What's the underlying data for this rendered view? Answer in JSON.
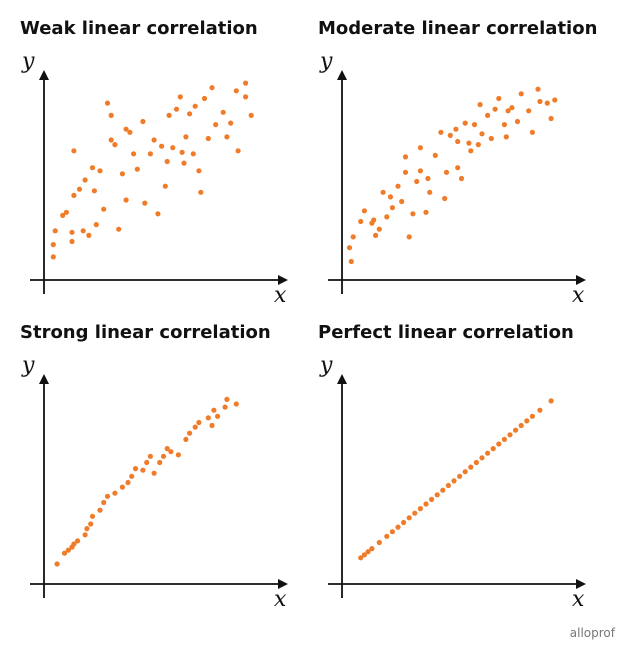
{
  "brand": "alloprof",
  "chart_data": [
    {
      "type": "scatter",
      "title": "Weak linear correlation",
      "xlabel": "x",
      "ylabel": "y",
      "point_color": "#f07c2a",
      "points": [
        [
          0.5,
          1.5
        ],
        [
          0.5,
          2.3
        ],
        [
          0.6,
          3.2
        ],
        [
          1.0,
          4.2
        ],
        [
          1.2,
          4.4
        ],
        [
          1.5,
          2.5
        ],
        [
          1.5,
          3.1
        ],
        [
          1.6,
          5.5
        ],
        [
          1.6,
          8.4
        ],
        [
          1.9,
          5.9
        ],
        [
          2.1,
          3.2
        ],
        [
          2.2,
          6.5
        ],
        [
          2.4,
          2.9
        ],
        [
          2.6,
          7.3
        ],
        [
          2.7,
          5.8
        ],
        [
          2.8,
          3.6
        ],
        [
          3.0,
          7.1
        ],
        [
          3.2,
          4.6
        ],
        [
          3.4,
          11.5
        ],
        [
          3.6,
          10.7
        ],
        [
          3.6,
          9.1
        ],
        [
          3.8,
          8.8
        ],
        [
          4.0,
          3.3
        ],
        [
          4.2,
          6.9
        ],
        [
          4.4,
          5.2
        ],
        [
          4.4,
          9.8
        ],
        [
          4.6,
          9.6
        ],
        [
          4.8,
          8.2
        ],
        [
          5.0,
          7.2
        ],
        [
          5.3,
          10.3
        ],
        [
          5.4,
          5.0
        ],
        [
          5.7,
          8.2
        ],
        [
          5.9,
          9.1
        ],
        [
          6.1,
          4.3
        ],
        [
          6.3,
          8.7
        ],
        [
          6.5,
          6.1
        ],
        [
          6.6,
          7.7
        ],
        [
          6.7,
          10.7
        ],
        [
          6.9,
          8.6
        ],
        [
          7.1,
          11.1
        ],
        [
          7.3,
          11.9
        ],
        [
          7.4,
          8.3
        ],
        [
          7.5,
          7.6
        ],
        [
          7.6,
          9.3
        ],
        [
          7.8,
          10.8
        ],
        [
          8.0,
          8.2
        ],
        [
          8.1,
          11.3
        ],
        [
          8.3,
          7.1
        ],
        [
          8.4,
          5.7
        ],
        [
          8.6,
          11.8
        ],
        [
          8.8,
          9.2
        ],
        [
          9.0,
          12.5
        ],
        [
          9.2,
          10.1
        ],
        [
          9.6,
          10.9
        ],
        [
          9.8,
          9.3
        ],
        [
          10.0,
          10.2
        ],
        [
          10.3,
          12.3
        ],
        [
          10.4,
          8.4
        ],
        [
          10.8,
          11.9
        ],
        [
          10.8,
          12.8
        ],
        [
          11.1,
          10.7
        ]
      ]
    },
    {
      "type": "scatter",
      "title": "Moderate linear correlation",
      "xlabel": "x",
      "ylabel": "y",
      "point_color": "#f07c2a",
      "points": [
        [
          0.4,
          2.1
        ],
        [
          0.5,
          1.2
        ],
        [
          0.6,
          2.8
        ],
        [
          1.0,
          3.8
        ],
        [
          1.2,
          4.5
        ],
        [
          1.6,
          3.7
        ],
        [
          1.7,
          3.9
        ],
        [
          1.8,
          2.9
        ],
        [
          2.0,
          3.3
        ],
        [
          2.2,
          5.7
        ],
        [
          2.4,
          4.1
        ],
        [
          2.6,
          5.4
        ],
        [
          2.7,
          4.7
        ],
        [
          3.0,
          6.1
        ],
        [
          3.2,
          5.1
        ],
        [
          3.4,
          7.0
        ],
        [
          3.4,
          8.0
        ],
        [
          3.6,
          2.8
        ],
        [
          3.8,
          4.3
        ],
        [
          4.0,
          6.4
        ],
        [
          4.2,
          8.6
        ],
        [
          4.2,
          7.1
        ],
        [
          4.5,
          4.4
        ],
        [
          4.6,
          6.6
        ],
        [
          4.7,
          5.7
        ],
        [
          5.0,
          8.1
        ],
        [
          5.3,
          9.6
        ],
        [
          5.5,
          5.3
        ],
        [
          5.6,
          7.0
        ],
        [
          5.8,
          9.4
        ],
        [
          6.1,
          9.8
        ],
        [
          6.2,
          7.3
        ],
        [
          6.2,
          9.0
        ],
        [
          6.4,
          6.6
        ],
        [
          6.6,
          10.2
        ],
        [
          6.8,
          8.9
        ],
        [
          6.9,
          8.4
        ],
        [
          7.1,
          10.1
        ],
        [
          7.3,
          8.8
        ],
        [
          7.4,
          11.4
        ],
        [
          7.5,
          9.5
        ],
        [
          7.8,
          10.7
        ],
        [
          8.0,
          9.2
        ],
        [
          8.2,
          11.1
        ],
        [
          8.4,
          11.8
        ],
        [
          8.7,
          10.1
        ],
        [
          8.8,
          9.3
        ],
        [
          8.9,
          11.0
        ],
        [
          9.1,
          11.2
        ],
        [
          9.4,
          10.3
        ],
        [
          9.6,
          12.1
        ],
        [
          10.0,
          11.0
        ],
        [
          10.2,
          9.6
        ],
        [
          10.5,
          12.4
        ],
        [
          10.6,
          11.6
        ],
        [
          11.0,
          11.5
        ],
        [
          11.2,
          10.5
        ],
        [
          11.4,
          11.7
        ]
      ]
    },
    {
      "type": "scatter",
      "title": "Strong linear correlation",
      "xlabel": "x",
      "ylabel": "y",
      "point_color": "#f07c2a",
      "points": [
        [
          0.7,
          1.3
        ],
        [
          1.1,
          2.0
        ],
        [
          1.3,
          2.2
        ],
        [
          1.5,
          2.4
        ],
        [
          1.6,
          2.6
        ],
        [
          1.8,
          2.8
        ],
        [
          2.2,
          3.2
        ],
        [
          2.3,
          3.6
        ],
        [
          2.5,
          3.9
        ],
        [
          2.6,
          4.4
        ],
        [
          3.0,
          4.8
        ],
        [
          3.2,
          5.3
        ],
        [
          3.4,
          5.7
        ],
        [
          3.8,
          5.9
        ],
        [
          4.2,
          6.3
        ],
        [
          4.5,
          6.6
        ],
        [
          4.7,
          7.0
        ],
        [
          4.9,
          7.5
        ],
        [
          5.3,
          7.4
        ],
        [
          5.5,
          7.9
        ],
        [
          5.7,
          8.3
        ],
        [
          5.9,
          7.2
        ],
        [
          6.2,
          7.9
        ],
        [
          6.4,
          8.3
        ],
        [
          6.6,
          8.8
        ],
        [
          6.8,
          8.6
        ],
        [
          7.2,
          8.4
        ],
        [
          7.6,
          9.4
        ],
        [
          7.8,
          9.8
        ],
        [
          8.1,
          10.2
        ],
        [
          8.3,
          10.5
        ],
        [
          8.8,
          10.8
        ],
        [
          9.0,
          10.3
        ],
        [
          9.1,
          11.3
        ],
        [
          9.3,
          10.9
        ],
        [
          9.7,
          11.5
        ],
        [
          9.8,
          12.0
        ],
        [
          10.3,
          11.7
        ]
      ]
    },
    {
      "type": "scatter",
      "title": "Perfect linear correlation",
      "xlabel": "x",
      "ylabel": "y",
      "point_color": "#f07c2a",
      "points": [
        [
          1.0,
          1.7
        ],
        [
          1.2,
          1.9
        ],
        [
          1.4,
          2.1
        ],
        [
          1.6,
          2.3
        ],
        [
          2.0,
          2.7
        ],
        [
          2.4,
          3.1
        ],
        [
          2.7,
          3.4
        ],
        [
          3.0,
          3.7
        ],
        [
          3.3,
          4.0
        ],
        [
          3.6,
          4.3
        ],
        [
          3.9,
          4.6
        ],
        [
          4.2,
          4.9
        ],
        [
          4.5,
          5.2
        ],
        [
          4.8,
          5.5
        ],
        [
          5.1,
          5.8
        ],
        [
          5.4,
          6.1
        ],
        [
          5.7,
          6.4
        ],
        [
          6.0,
          6.7
        ],
        [
          6.3,
          7.0
        ],
        [
          6.6,
          7.3
        ],
        [
          6.9,
          7.6
        ],
        [
          7.2,
          7.9
        ],
        [
          7.5,
          8.2
        ],
        [
          7.8,
          8.5
        ],
        [
          8.1,
          8.8
        ],
        [
          8.4,
          9.1
        ],
        [
          8.7,
          9.4
        ],
        [
          9.0,
          9.7
        ],
        [
          9.3,
          10.0
        ],
        [
          9.6,
          10.3
        ],
        [
          9.9,
          10.6
        ],
        [
          10.2,
          10.9
        ],
        [
          10.6,
          11.3
        ],
        [
          11.2,
          11.9
        ]
      ]
    }
  ]
}
